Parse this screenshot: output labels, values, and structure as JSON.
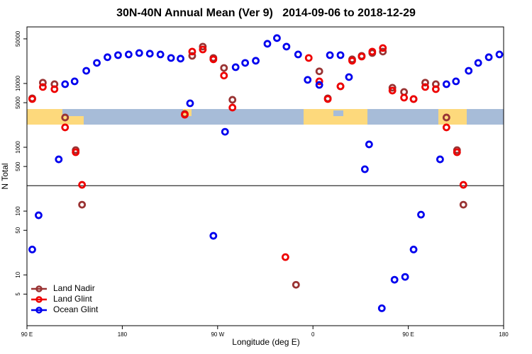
{
  "chart_data": {
    "type": "scatter",
    "title": "30N-40N Annual Mean (Ver 9)   2014-09-06 to 2018-12-29",
    "x_label": "Longitude (deg E)",
    "y_label": "N Total",
    "y_scale": "log",
    "xlim": [
      90,
      540
    ],
    "xticks": [
      {
        "value": 90,
        "label": "90 E"
      },
      180,
      {
        "value": 270,
        "label": "90 W"
      },
      {
        "value": 360,
        "label": "0"
      },
      {
        "value": 450,
        "label": "90 E"
      },
      {
        "value": 540,
        "label": "180"
      }
    ],
    "ylim": [
      1.6,
      77000
    ],
    "yticks": [
      5,
      10,
      50,
      100,
      500,
      1000,
      5000,
      10000,
      50000
    ],
    "reference_line": 250,
    "legend": "bottom-left",
    "series": [
      {
        "name": "Land Nadir",
        "color": "#993333",
        "x": [
          95,
          105,
          116,
          126,
          136,
          142,
          239,
          246,
          256,
          266,
          276,
          284,
          344,
          366,
          374,
          386,
          397,
          406,
          416,
          426,
          435,
          446,
          455,
          466,
          476,
          486,
          496,
          502
        ],
        "values": [
          5850,
          10300,
          9750,
          2930,
          903,
          126,
          3330,
          27100,
          37800,
          25100,
          17500,
          5550,
          7,
          15500,
          5850,
          9030,
          23900,
          27100,
          30000,
          31600,
          8580,
          7360,
          5700,
          10300,
          9750,
          2930,
          903,
          126
        ]
      },
      {
        "name": "Land Glint",
        "color": "#ee0000",
        "x": [
          95,
          105,
          116,
          126,
          136,
          142,
          239,
          246,
          256,
          266,
          276,
          284,
          334,
          356,
          366,
          374,
          386,
          397,
          406,
          416,
          426,
          435,
          446,
          455,
          466,
          476,
          486,
          496,
          502
        ],
        "values": [
          5700,
          8800,
          8150,
          2050,
          836,
          258,
          3240,
          31600,
          34100,
          23900,
          13300,
          4190,
          19,
          25100,
          10800,
          5700,
          9030,
          22700,
          26400,
          31600,
          35900,
          7740,
          6000,
          5700,
          8800,
          8150,
          2050,
          836,
          258
        ]
      },
      {
        "name": "Ocean Glint",
        "color": "#0000ee",
        "x": [
          95,
          101,
          120,
          126,
          135,
          146,
          156,
          166,
          176,
          186,
          196,
          206,
          216,
          226,
          235,
          244,
          266,
          277,
          287,
          296,
          306,
          317,
          326,
          335,
          346,
          355,
          366,
          376,
          386,
          394,
          409,
          413,
          425,
          437,
          447,
          455,
          462,
          480,
          486,
          495,
          507,
          516,
          526,
          536
        ],
        "values": [
          25,
          86,
          647,
          9750,
          10800,
          15800,
          21000,
          25800,
          27800,
          28500,
          30000,
          29300,
          28500,
          25100,
          24500,
          4890,
          41,
          1750,
          18000,
          21000,
          22700,
          41900,
          51400,
          37800,
          28500,
          11400,
          9500,
          27800,
          27800,
          12600,
          453,
          1110,
          3.0,
          8.4,
          9.3,
          25,
          88,
          647,
          9750,
          10800,
          15800,
          21000,
          25800,
          28500
        ]
      }
    ]
  }
}
